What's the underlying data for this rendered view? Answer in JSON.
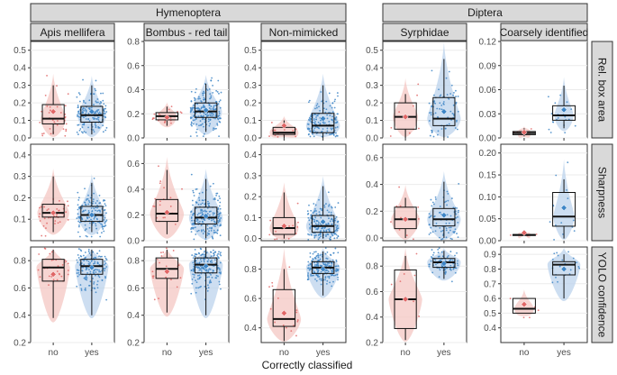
{
  "chart_data": {
    "type": "boxplot",
    "title": "",
    "xlabel": "Correctly classified",
    "categories": [
      "no",
      "yes"
    ],
    "colors": {
      "no": "#e06666",
      "yes": "#3d85c6",
      "no_fill": "#f4c7c3",
      "yes_fill": "#bcd3ec"
    },
    "group_strips": [
      {
        "label": "Hymenoptera",
        "columns": [
          0,
          1,
          2
        ]
      },
      {
        "label": "Diptera",
        "columns": [
          3,
          4
        ]
      }
    ],
    "column_labels": [
      "Apis mellifera",
      "Bombus - red tail",
      "Non-mimicked",
      "Syrphidae",
      "Coarsely identified"
    ],
    "row_labels": [
      "Rel. box area",
      "Sharpness",
      "YOLO confidence"
    ],
    "panels": [
      [
        {
          "ylim": [
            0.0,
            0.55
          ],
          "ticks": [
            0.0,
            0.1,
            0.2,
            0.3,
            0.4,
            0.5
          ],
          "tick_labels": [
            "0.0",
            "0.1",
            "0.2",
            "0.3",
            "0.4",
            "0.5"
          ],
          "no": {
            "q1": 0.08,
            "median": 0.11,
            "q3": 0.19,
            "lo": 0.02,
            "hi": 0.3,
            "mean": 0.15,
            "n": 40,
            "spread": 0.2
          },
          "yes": {
            "q1": 0.09,
            "median": 0.13,
            "q3": 0.18,
            "lo": 0.02,
            "hi": 0.3,
            "mean": 0.15,
            "n": 150,
            "spread": 0.25
          }
        },
        {
          "ylim": [
            0.0,
            0.8
          ],
          "ticks": [
            0.0,
            0.2,
            0.4,
            0.6,
            0.8
          ],
          "tick_labels": [
            "0.0",
            "0.2",
            "0.4",
            "0.6",
            "0.8"
          ],
          "no": {
            "q1": 0.15,
            "median": 0.18,
            "q3": 0.21,
            "lo": 0.1,
            "hi": 0.26,
            "mean": 0.17,
            "n": 20,
            "spread": 0.1
          },
          "yes": {
            "q1": 0.17,
            "median": 0.22,
            "q3": 0.29,
            "lo": 0.05,
            "hi": 0.45,
            "mean": 0.23,
            "n": 200,
            "spread": 0.3
          }
        },
        {
          "ylim": [
            0.0,
            0.55
          ],
          "ticks": [
            0.0,
            0.1,
            0.2,
            0.3,
            0.4,
            0.5
          ],
          "tick_labels": [
            "0.0",
            "0.1",
            "0.2",
            "0.3",
            "0.4",
            "0.5"
          ],
          "no": {
            "q1": 0.02,
            "median": 0.03,
            "q3": 0.06,
            "lo": 0.0,
            "hi": 0.1,
            "mean": 0.07,
            "n": 20,
            "spread": 0.25
          },
          "yes": {
            "q1": 0.03,
            "median": 0.07,
            "q3": 0.14,
            "lo": 0.0,
            "hi": 0.3,
            "mean": 0.11,
            "n": 200,
            "spread": 0.35
          }
        },
        {
          "ylim": [
            0.0,
            0.55
          ],
          "ticks": [
            0.0,
            0.1,
            0.2,
            0.3,
            0.4,
            0.5
          ],
          "tick_labels": [
            "0.0",
            "0.1",
            "0.2",
            "0.3",
            "0.4",
            "0.5"
          ],
          "no": {
            "q1": 0.05,
            "median": 0.12,
            "q3": 0.2,
            "lo": 0.0,
            "hi": 0.25,
            "mean": 0.12,
            "n": 10,
            "spread": 0.2
          },
          "yes": {
            "q1": 0.07,
            "median": 0.11,
            "q3": 0.23,
            "lo": 0.0,
            "hi": 0.45,
            "mean": 0.15,
            "n": 90,
            "spread": 0.45
          }
        },
        {
          "ylim": [
            0.0,
            0.12
          ],
          "ticks": [
            0.0,
            0.03,
            0.06,
            0.09,
            0.12
          ],
          "tick_labels": [
            "0.00",
            "0.03",
            "0.06",
            "0.09",
            "0.12"
          ],
          "no": {
            "q1": 0.004,
            "median": 0.006,
            "q3": 0.008,
            "lo": 0.002,
            "hi": 0.012,
            "mean": 0.007,
            "n": 5,
            "spread": 0.01
          },
          "yes": {
            "q1": 0.022,
            "median": 0.028,
            "q3": 0.04,
            "lo": 0.012,
            "hi": 0.065,
            "mean": 0.035,
            "n": 20,
            "spread": 0.1
          }
        }
      ],
      [
        {
          "ylim": [
            0.0,
            0.45
          ],
          "ticks": [
            0.1,
            0.2,
            0.3,
            0.4
          ],
          "tick_labels": [
            "0.1",
            "0.2",
            "0.3",
            "0.4"
          ],
          "no": {
            "q1": 0.11,
            "median": 0.13,
            "q3": 0.17,
            "lo": 0.04,
            "hi": 0.3,
            "mean": 0.13,
            "n": 40,
            "spread": 0.3
          },
          "yes": {
            "q1": 0.09,
            "median": 0.12,
            "q3": 0.16,
            "lo": 0.04,
            "hi": 0.27,
            "mean": 0.12,
            "n": 150,
            "spread": 0.25
          }
        },
        {
          "ylim": [
            0.0,
            0.75
          ],
          "ticks": [
            0.0,
            0.2,
            0.4,
            0.6
          ],
          "tick_labels": [
            "0.0",
            "0.2",
            "0.4",
            "0.6"
          ],
          "no": {
            "q1": 0.15,
            "median": 0.21,
            "q3": 0.32,
            "lo": 0.05,
            "hi": 0.55,
            "mean": 0.22,
            "n": 20,
            "spread": 0.5
          },
          "yes": {
            "q1": 0.13,
            "median": 0.18,
            "q3": 0.26,
            "lo": 0.02,
            "hi": 0.48,
            "mean": 0.19,
            "n": 200,
            "spread": 0.6
          }
        },
        {
          "ylim": [
            -0.01,
            0.45
          ],
          "ticks": [
            0.0,
            0.1,
            0.2,
            0.3,
            0.4
          ],
          "tick_labels": [
            "0.0",
            "0.1",
            "0.2",
            "0.3",
            "0.4"
          ],
          "no": {
            "q1": 0.02,
            "median": 0.05,
            "q3": 0.1,
            "lo": 0.0,
            "hi": 0.22,
            "mean": 0.06,
            "n": 20,
            "spread": 0.25
          },
          "yes": {
            "q1": 0.03,
            "median": 0.06,
            "q3": 0.11,
            "lo": 0.0,
            "hi": 0.25,
            "mean": 0.08,
            "n": 200,
            "spread": 0.4
          }
        },
        {
          "ylim": [
            -0.02,
            0.7
          ],
          "ticks": [
            0.0,
            0.2,
            0.4,
            0.6
          ],
          "tick_labels": [
            "0.0",
            "0.2",
            "0.4",
            "0.6"
          ],
          "no": {
            "q1": 0.07,
            "median": 0.14,
            "q3": 0.23,
            "lo": 0.0,
            "hi": 0.3,
            "mean": 0.14,
            "n": 10,
            "spread": 0.25
          },
          "yes": {
            "q1": 0.09,
            "median": 0.14,
            "q3": 0.22,
            "lo": 0.0,
            "hi": 0.42,
            "mean": 0.17,
            "n": 90,
            "spread": 0.55
          }
        },
        {
          "ylim": [
            0.0,
            0.22
          ],
          "ticks": [
            0.0,
            0.05,
            0.1,
            0.15,
            0.2
          ],
          "tick_labels": [
            "0.00",
            "0.05",
            "0.10",
            "0.15",
            "0.20"
          ],
          "no": {
            "q1": 0.012,
            "median": 0.013,
            "q3": 0.014,
            "lo": 0.012,
            "hi": 0.014,
            "mean": 0.018,
            "n": 4,
            "spread": 0.005
          },
          "yes": {
            "q1": 0.033,
            "median": 0.055,
            "q3": 0.11,
            "lo": 0.005,
            "hi": 0.14,
            "mean": 0.075,
            "n": 20,
            "spread": 0.13
          }
        }
      ],
      [
        {
          "ylim": [
            0.2,
            0.9
          ],
          "ticks": [
            0.2,
            0.4,
            0.6,
            0.8
          ],
          "tick_labels": [
            "0.2",
            "0.4",
            "0.6",
            "0.8"
          ],
          "no": {
            "q1": 0.65,
            "median": 0.75,
            "q3": 0.81,
            "lo": 0.38,
            "hi": 0.88,
            "mean": 0.7,
            "n": 40,
            "spread": 0.5
          },
          "yes": {
            "q1": 0.7,
            "median": 0.76,
            "q3": 0.81,
            "lo": 0.4,
            "hi": 0.88,
            "mean": 0.75,
            "n": 150,
            "spread": 0.55
          }
        },
        {
          "ylim": [
            0.2,
            0.9
          ],
          "ticks": [
            0.2,
            0.4,
            0.6,
            0.8
          ],
          "tick_labels": [
            "0.2",
            "0.4",
            "0.6",
            "0.8"
          ],
          "no": {
            "q1": 0.67,
            "median": 0.74,
            "q3": 0.82,
            "lo": 0.42,
            "hi": 0.88,
            "mean": 0.72,
            "n": 20,
            "spread": 0.45
          },
          "yes": {
            "q1": 0.71,
            "median": 0.77,
            "q3": 0.82,
            "lo": 0.4,
            "hi": 0.9,
            "mean": 0.76,
            "n": 200,
            "spread": 0.6
          }
        },
        {
          "ylim": [
            0.3,
            0.95
          ],
          "ticks": [
            0.4,
            0.6,
            0.8
          ],
          "tick_labels": [
            "0.4",
            "0.6",
            "0.8"
          ],
          "no": {
            "q1": 0.41,
            "median": 0.46,
            "q3": 0.66,
            "lo": 0.31,
            "hi": 0.8,
            "mean": 0.5,
            "n": 20,
            "spread": 0.45
          },
          "yes": {
            "q1": 0.77,
            "median": 0.81,
            "q3": 0.85,
            "lo": 0.62,
            "hi": 0.92,
            "mean": 0.8,
            "n": 200,
            "spread": 0.5
          }
        },
        {
          "ylim": [
            0.2,
            0.95
          ],
          "ticks": [
            0.2,
            0.4,
            0.6,
            0.8
          ],
          "tick_labels": [
            "0.2",
            "0.4",
            "0.6",
            "0.8"
          ],
          "no": {
            "q1": 0.31,
            "median": 0.54,
            "q3": 0.77,
            "lo": 0.22,
            "hi": 0.88,
            "mean": 0.54,
            "n": 10,
            "spread": 0.6
          },
          "yes": {
            "q1": 0.79,
            "median": 0.83,
            "q3": 0.86,
            "lo": 0.7,
            "hi": 0.92,
            "mean": 0.82,
            "n": 90,
            "spread": 0.35
          }
        },
        {
          "ylim": [
            0.3,
            0.95
          ],
          "ticks": [
            0.4,
            0.5,
            0.6,
            0.7,
            0.8,
            0.9
          ],
          "tick_labels": [
            "0.4",
            "0.5",
            "0.6",
            "0.7",
            "0.8",
            "0.9"
          ],
          "no": {
            "q1": 0.5,
            "median": 0.53,
            "q3": 0.6,
            "lo": 0.5,
            "hi": 0.6,
            "mean": 0.56,
            "n": 5,
            "spread": 0.1
          },
          "yes": {
            "q1": 0.76,
            "median": 0.83,
            "q3": 0.85,
            "lo": 0.6,
            "hi": 0.9,
            "mean": 0.8,
            "n": 20,
            "spread": 0.3
          }
        }
      ]
    ]
  }
}
